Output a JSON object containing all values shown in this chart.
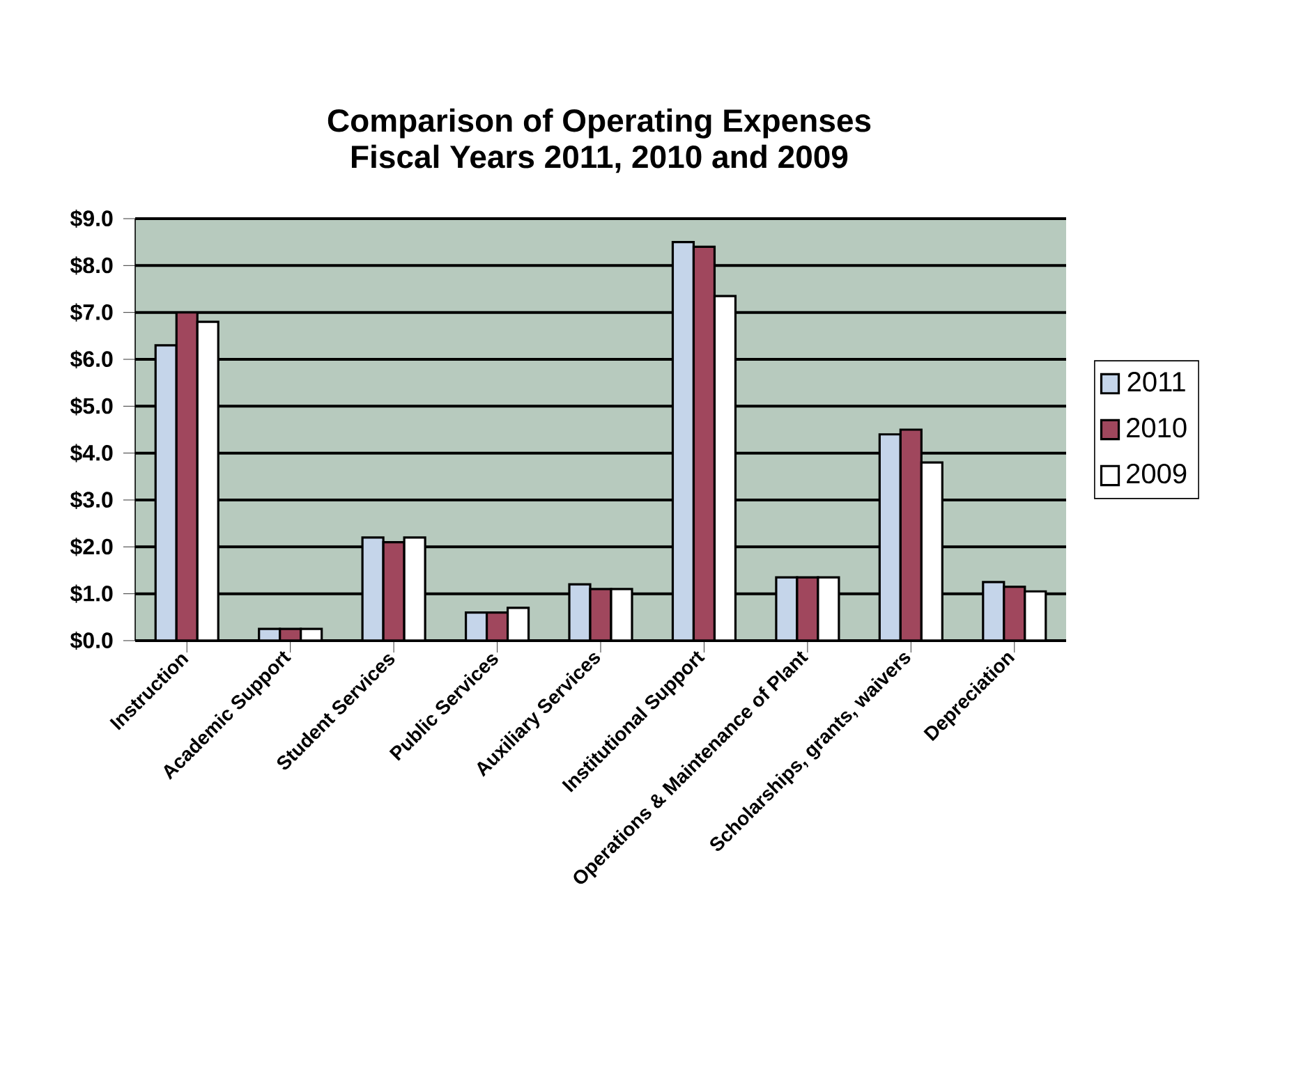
{
  "chart_data": {
    "type": "bar",
    "title": "Comparison of Operating Expenses",
    "subtitle": "Fiscal Years 2011, 2010 and 2009",
    "categories": [
      "Instruction",
      "Academic Support",
      "Student Services",
      "Public Services",
      "Auxiliary Services",
      "Institutional Support",
      "Operations & Maintenance of Plant",
      "Scholarships, grants, waivers",
      "Depreciation"
    ],
    "series": [
      {
        "name": "2011",
        "color": "#c5d5ea",
        "values": [
          6.3,
          0.25,
          2.2,
          0.6,
          1.2,
          8.5,
          1.35,
          4.4,
          1.25
        ]
      },
      {
        "name": "2010",
        "color": "#a0475d",
        "values": [
          7.0,
          0.25,
          2.1,
          0.6,
          1.1,
          8.4,
          1.35,
          4.5,
          1.15
        ]
      },
      {
        "name": "2009",
        "color": "#ffffff",
        "values": [
          6.8,
          0.25,
          2.2,
          0.7,
          1.1,
          7.35,
          1.35,
          3.8,
          1.05
        ]
      }
    ],
    "ylim": [
      0,
      9
    ],
    "yticks": [
      {
        "value": 0,
        "label": "$0.0"
      },
      {
        "value": 1,
        "label": "$1.0"
      },
      {
        "value": 2,
        "label": "$2.0"
      },
      {
        "value": 3,
        "label": "$3.0"
      },
      {
        "value": 4,
        "label": "$4.0"
      },
      {
        "value": 5,
        "label": "$5.0"
      },
      {
        "value": 6,
        "label": "$6.0"
      },
      {
        "value": 7,
        "label": "$7.0"
      },
      {
        "value": 8,
        "label": "$8.0"
      },
      {
        "value": 9,
        "label": "$9.0"
      }
    ],
    "grid": "y",
    "legend": "right"
  }
}
